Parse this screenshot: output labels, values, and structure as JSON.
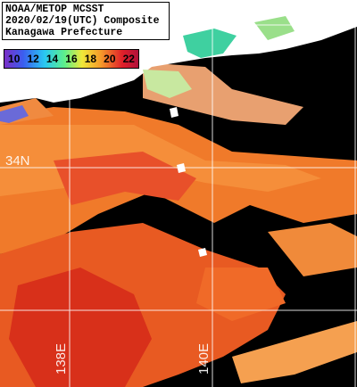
{
  "header": {
    "lines": [
      "NOAA/METOP MCSST",
      "2020/02/19(UTC) Composite",
      "Kanagawa Prefecture"
    ]
  },
  "colorbar": {
    "labels": [
      "10",
      "12",
      "14",
      "16",
      "18",
      "20",
      "22"
    ]
  },
  "grid_labels": {
    "lat": [
      "34N"
    ],
    "lon": [
      "138E",
      "140E"
    ]
  }
}
